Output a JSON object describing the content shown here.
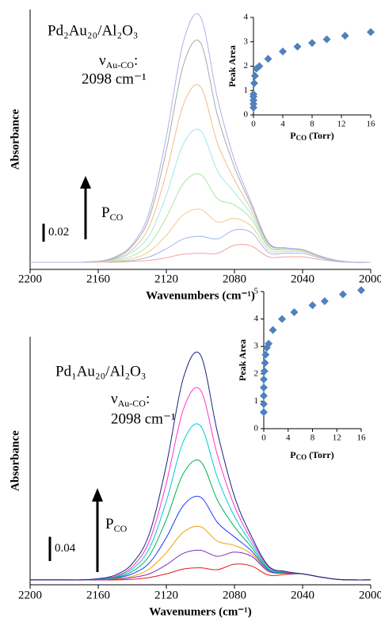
{
  "chart_data": [
    {
      "type": "line",
      "title": "Pd₂Au₂₀/Al₂O₃",
      "mode_label": {
        "symbol": "ν",
        "sub": "Au-CO",
        "tail": ":"
      },
      "mode_position": "2098 cm⁻¹",
      "arrow_label": {
        "main": "P",
        "sub": "CO"
      },
      "scale_bar": 0.02,
      "xlabel": "Wavenumbers (cm⁻¹)",
      "ylabel": "Absorbance",
      "x": [
        2200,
        2190,
        2180,
        2170,
        2160,
        2150,
        2140,
        2130,
        2120,
        2110,
        2100,
        2090,
        2080,
        2070,
        2060,
        2050,
        2040,
        2030,
        2020,
        2010,
        2000
      ],
      "xlim": [
        2200,
        2000
      ],
      "xticks": [
        2200,
        2160,
        2120,
        2080,
        2040,
        2000
      ],
      "ylim": [
        0,
        0.29
      ],
      "series": [
        {
          "color": "#f4a0a0",
          "values": [
            0.008,
            0.008,
            0.008,
            0.008,
            0.008,
            0.008,
            0.009,
            0.01,
            0.013,
            0.017,
            0.018,
            0.018,
            0.027,
            0.026,
            0.014,
            0.014,
            0.014,
            0.011,
            0.009,
            0.008,
            0.008
          ]
        },
        {
          "color": "#9fb6ee",
          "values": [
            0.008,
            0.008,
            0.008,
            0.008,
            0.008,
            0.009,
            0.01,
            0.014,
            0.023,
            0.034,
            0.037,
            0.034,
            0.044,
            0.041,
            0.019,
            0.018,
            0.018,
            0.013,
            0.009,
            0.008,
            0.008
          ]
        },
        {
          "color": "#f5c98a",
          "values": [
            0.008,
            0.008,
            0.008,
            0.008,
            0.008,
            0.009,
            0.012,
            0.02,
            0.038,
            0.061,
            0.067,
            0.053,
            0.057,
            0.048,
            0.022,
            0.02,
            0.02,
            0.014,
            0.01,
            0.008,
            0.008
          ]
        },
        {
          "color": "#a8e6a0",
          "values": [
            0.008,
            0.008,
            0.008,
            0.008,
            0.009,
            0.01,
            0.015,
            0.028,
            0.058,
            0.096,
            0.106,
            0.079,
            0.072,
            0.056,
            0.025,
            0.022,
            0.021,
            0.014,
            0.01,
            0.008,
            0.008
          ]
        },
        {
          "color": "#9ee8e8",
          "values": [
            0.008,
            0.008,
            0.008,
            0.008,
            0.009,
            0.011,
            0.019,
            0.038,
            0.083,
            0.14,
            0.155,
            0.11,
            0.086,
            0.061,
            0.026,
            0.023,
            0.022,
            0.015,
            0.01,
            0.008,
            0.008
          ]
        },
        {
          "color": "#f3bb8a",
          "values": [
            0.008,
            0.008,
            0.008,
            0.008,
            0.009,
            0.012,
            0.022,
            0.048,
            0.108,
            0.184,
            0.204,
            0.141,
            0.1,
            0.066,
            0.028,
            0.024,
            0.022,
            0.015,
            0.01,
            0.008,
            0.008
          ]
        },
        {
          "color": "#9fb09f",
          "values": [
            0.008,
            0.008,
            0.008,
            0.008,
            0.009,
            0.013,
            0.026,
            0.058,
            0.133,
            0.228,
            0.253,
            0.172,
            0.114,
            0.071,
            0.029,
            0.024,
            0.022,
            0.015,
            0.01,
            0.008,
            0.008
          ]
        },
        {
          "color": "#b9a8f2",
          "values": [
            0.008,
            0.008,
            0.008,
            0.008,
            0.009,
            0.014,
            0.028,
            0.064,
            0.148,
            0.254,
            0.282,
            0.191,
            0.122,
            0.074,
            0.03,
            0.024,
            0.022,
            0.015,
            0.01,
            0.008,
            0.008
          ]
        }
      ]
    },
    {
      "type": "scatter",
      "ylabel": "Peak Area",
      "xlabel": {
        "main": "P",
        "sub": "CO",
        "tail": " (Torr)"
      },
      "xlim": [
        0,
        16
      ],
      "xticks": [
        0,
        4,
        8,
        12,
        16
      ],
      "ylim": [
        0,
        4
      ],
      "yticks": [
        0,
        1,
        2,
        3,
        4
      ],
      "color": "#4f81bd",
      "x": [
        0,
        0,
        0,
        0,
        0,
        0.1,
        0.2,
        0.4,
        0.8,
        2,
        4,
        6,
        8,
        10,
        12.5,
        16
      ],
      "values": [
        0.3,
        0.45,
        0.6,
        0.75,
        0.85,
        1.3,
        1.6,
        1.9,
        2.0,
        2.3,
        2.6,
        2.8,
        2.95,
        3.1,
        3.25,
        3.4
      ]
    },
    {
      "type": "line",
      "title": "Pd₁Au₂₀/Al₂O₃",
      "mode_label": {
        "symbol": "ν",
        "sub": "Au-CO",
        "tail": ":"
      },
      "mode_position": "2098 cm⁻¹",
      "arrow_label": {
        "main": "P",
        "sub": "CO"
      },
      "scale_bar": 0.04,
      "xlabel": "Wavenumers (cm⁻¹)",
      "ylabel": "Absorbance",
      "x": [
        2200,
        2190,
        2180,
        2170,
        2160,
        2150,
        2140,
        2130,
        2120,
        2110,
        2100,
        2090,
        2080,
        2070,
        2060,
        2050,
        2040,
        2030,
        2020,
        2010,
        2000
      ],
      "xlim": [
        2200,
        2000
      ],
      "xticks": [
        2200,
        2160,
        2120,
        2080,
        2040,
        2000
      ],
      "ylim": [
        0,
        0.41
      ],
      "series": [
        {
          "color": "#e41a1c",
          "values": [
            0.008,
            0.008,
            0.008,
            0.008,
            0.008,
            0.008,
            0.009,
            0.012,
            0.018,
            0.026,
            0.028,
            0.025,
            0.034,
            0.031,
            0.016,
            0.017,
            0.018,
            0.013,
            0.009,
            0.008,
            0.008
          ]
        },
        {
          "color": "#7b2fbe",
          "values": [
            0.008,
            0.008,
            0.008,
            0.008,
            0.008,
            0.009,
            0.012,
            0.018,
            0.033,
            0.052,
            0.057,
            0.047,
            0.054,
            0.047,
            0.022,
            0.019,
            0.018,
            0.013,
            0.009,
            0.008,
            0.008
          ]
        },
        {
          "color": "#f0a30a",
          "values": [
            0.008,
            0.008,
            0.008,
            0.008,
            0.009,
            0.01,
            0.014,
            0.026,
            0.053,
            0.087,
            0.096,
            0.072,
            0.065,
            0.051,
            0.023,
            0.019,
            0.018,
            0.013,
            0.009,
            0.008,
            0.008
          ]
        },
        {
          "color": "#1f3fff",
          "values": [
            0.008,
            0.008,
            0.008,
            0.008,
            0.009,
            0.011,
            0.018,
            0.036,
            0.078,
            0.131,
            0.145,
            0.103,
            0.079,
            0.056,
            0.024,
            0.019,
            0.018,
            0.013,
            0.009,
            0.008,
            0.008
          ]
        },
        {
          "color": "#00b050",
          "values": [
            0.008,
            0.008,
            0.008,
            0.008,
            0.009,
            0.012,
            0.022,
            0.048,
            0.108,
            0.184,
            0.204,
            0.14,
            0.096,
            0.062,
            0.026,
            0.02,
            0.018,
            0.013,
            0.009,
            0.008,
            0.008
          ]
        },
        {
          "color": "#00c8d8",
          "values": [
            0.008,
            0.008,
            0.008,
            0.008,
            0.009,
            0.013,
            0.026,
            0.06,
            0.138,
            0.237,
            0.263,
            0.177,
            0.113,
            0.068,
            0.028,
            0.021,
            0.018,
            0.013,
            0.009,
            0.008,
            0.008
          ]
        },
        {
          "color": "#ff33cc",
          "values": [
            0.008,
            0.008,
            0.008,
            0.008,
            0.01,
            0.014,
            0.03,
            0.072,
            0.168,
            0.29,
            0.322,
            0.214,
            0.13,
            0.074,
            0.03,
            0.021,
            0.018,
            0.013,
            0.009,
            0.008,
            0.008
          ]
        },
        {
          "color": "#1a237e",
          "values": [
            0.008,
            0.008,
            0.008,
            0.008,
            0.01,
            0.016,
            0.035,
            0.084,
            0.198,
            0.342,
            0.38,
            0.252,
            0.146,
            0.08,
            0.031,
            0.022,
            0.018,
            0.013,
            0.009,
            0.008,
            0.008
          ]
        }
      ]
    },
    {
      "type": "scatter",
      "ylabel": "Peak Area",
      "xlabel": {
        "main": "P",
        "sub": "CO",
        "tail": " (Torr)"
      },
      "xlim": [
        0,
        16
      ],
      "xticks": [
        0,
        4,
        8,
        12,
        16
      ],
      "ylim": [
        0,
        5
      ],
      "yticks": [
        0,
        1,
        2,
        3,
        4,
        5
      ],
      "color": "#4f81bd",
      "x": [
        0,
        0,
        0,
        0,
        0,
        0.1,
        0.2,
        0.3,
        0.5,
        0.8,
        1.5,
        3,
        5,
        8,
        10,
        13,
        16
      ],
      "values": [
        0.6,
        0.9,
        1.2,
        1.5,
        1.8,
        2.1,
        2.4,
        2.7,
        2.95,
        3.1,
        3.6,
        4.0,
        4.25,
        4.5,
        4.65,
        4.9,
        5.05
      ]
    }
  ]
}
